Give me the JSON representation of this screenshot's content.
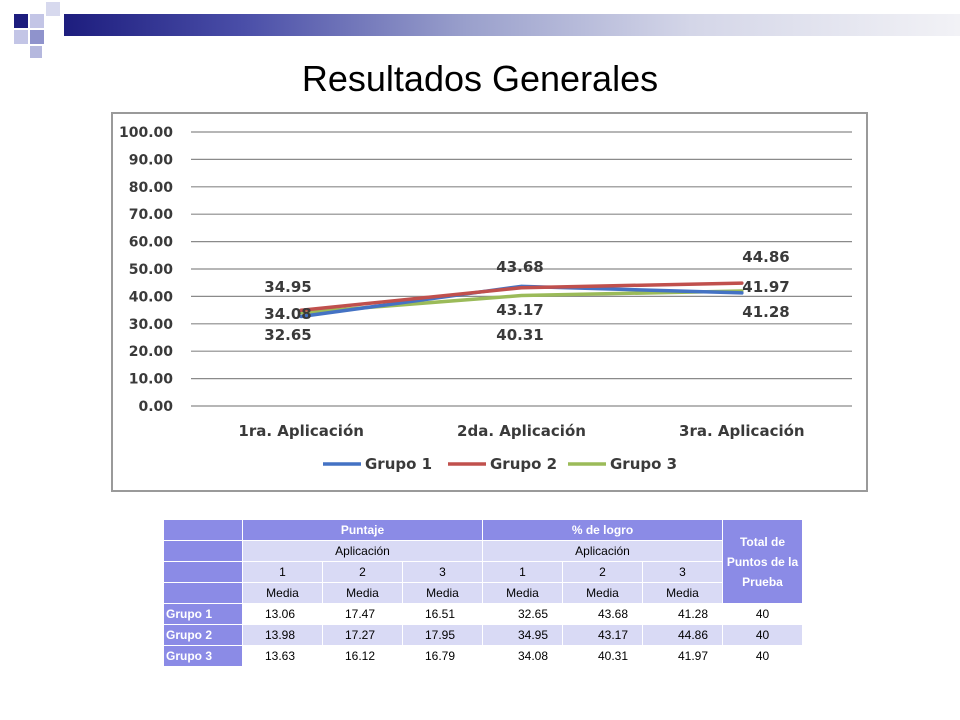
{
  "slide": {
    "title": "Resultados Generales"
  },
  "colors": {
    "grupo1": "#4472c4",
    "grupo2": "#c0504d",
    "grupo3": "#9bbb59",
    "table_dark": "#8b8be6",
    "table_light": "#d9daf5"
  },
  "chart_data": {
    "type": "line",
    "categories": [
      "1ra. Aplicación",
      "2da. Aplicación",
      "3ra. Aplicación"
    ],
    "series": [
      {
        "name": "Grupo 1",
        "values": [
          32.65,
          43.68,
          41.28
        ]
      },
      {
        "name": "Grupo 2",
        "values": [
          34.95,
          43.17,
          44.86
        ]
      },
      {
        "name": "Grupo 3",
        "values": [
          34.08,
          40.31,
          41.97
        ]
      }
    ],
    "y_ticks": [
      "100.00",
      "90.00",
      "80.00",
      "70.00",
      "60.00",
      "50.00",
      "40.00",
      "30.00",
      "20.00",
      "10.00",
      "0.00"
    ],
    "ylim": [
      0,
      100
    ],
    "grid": true,
    "legend": "bottom",
    "data_labels": [
      [
        "34.95",
        "34.08",
        "32.65"
      ],
      [
        "43.68",
        "43.17",
        "40.31"
      ],
      [
        "44.86",
        "41.97",
        "41.28"
      ]
    ]
  },
  "table": {
    "header_puntaje": "Puntaje",
    "header_logro": "% de logro",
    "header_total": "Total de Puntos de la Prueba",
    "aplicacion": "Aplicación",
    "app_numbers": [
      "1",
      "2",
      "3",
      "1",
      "2",
      "3"
    ],
    "media": "Media",
    "rows": [
      {
        "group": "Grupo 1",
        "values": [
          "13.06",
          "17.47",
          "16.51",
          "32.65",
          "43.68",
          "41.28"
        ],
        "total": "40"
      },
      {
        "group": "Grupo 2",
        "values": [
          "13.98",
          "17.27",
          "17.95",
          "34.95",
          "43.17",
          "44.86"
        ],
        "total": "40"
      },
      {
        "group": "Grupo 3",
        "values": [
          "13.63",
          "16.12",
          "16.79",
          "34.08",
          "40.31",
          "41.97"
        ],
        "total": "40"
      }
    ]
  }
}
